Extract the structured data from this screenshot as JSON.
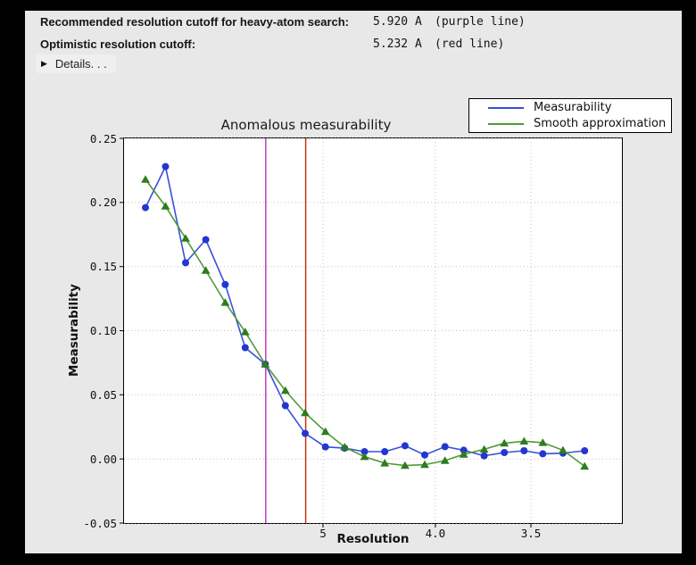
{
  "app": {
    "background": "#000000",
    "panel_background": "#e8e8e8"
  },
  "header": {
    "rows": [
      {
        "label": "Recommended resolution cutoff for heavy-atom search:",
        "value": "5.920 A",
        "note": "(purple line)"
      },
      {
        "label": "Optimistic resolution cutoff:",
        "value": "5.232 A",
        "note": "(red line)"
      }
    ],
    "details": {
      "icon": "▶",
      "label": "Details. . ."
    }
  },
  "chart_data": {
    "type": "line",
    "title": "Anomalous measurability",
    "xlabel": "Resolution",
    "ylabel": "Measurability",
    "grid": true,
    "grid_color": "#c3c3c3",
    "legend_position": "top-right-outside",
    "x_axis": {
      "scale": "linear in 1/d^2 (resolution in Angstrom, decreasing to the right)",
      "tick_labels": [
        "5",
        "4.0",
        "3.5"
      ],
      "tick_values": [
        5,
        4.0,
        3.5
      ],
      "u_range": [
        0.000154,
        0.099858
      ]
    },
    "y_axis": {
      "tick_labels": [
        "0.25",
        "0.20",
        "0.15",
        "0.10",
        "0.05",
        "0.00",
        "-0.05"
      ],
      "tick_values": [
        0.25,
        0.2,
        0.15,
        0.1,
        0.05,
        0.0,
        -0.05
      ],
      "range": [
        -0.05,
        0.25
      ]
    },
    "x_resolution": [
      15.0,
      10.87,
      8.95,
      7.78,
      7.0,
      6.4,
      5.93,
      5.55,
      5.24,
      4.97,
      4.75,
      4.55,
      4.37,
      4.21,
      4.07,
      3.94,
      3.83,
      3.72,
      3.62,
      3.53,
      3.45,
      3.37,
      3.29
    ],
    "series": [
      {
        "name": "Measurability",
        "marker": "circle",
        "line_color": "#3a50d9",
        "marker_color": "#2336cf",
        "values": [
          0.196,
          0.228,
          0.153,
          0.171,
          0.136,
          0.0868,
          0.0739,
          0.0415,
          0.0199,
          0.0094,
          0.0084,
          0.0057,
          0.0057,
          0.0103,
          0.0031,
          0.0096,
          0.0068,
          0.0024,
          0.005,
          0.0064,
          0.004,
          0.0045,
          0.0064
        ]
      },
      {
        "name": "Smooth approximation",
        "marker": "triangle",
        "line_color": "#4f9a38",
        "marker_color": "#2e7c1e",
        "values": [
          0.218,
          0.197,
          0.172,
          0.147,
          0.122,
          0.099,
          0.0739,
          0.0533,
          0.0359,
          0.0213,
          0.0092,
          0.0017,
          -0.0033,
          -0.0052,
          -0.0045,
          -0.0013,
          0.0036,
          0.0075,
          0.0122,
          0.0138,
          0.0127,
          0.0068,
          -0.0057
        ]
      }
    ],
    "vlines": [
      {
        "name": "purple line",
        "resolution": 5.92,
        "color": "#c23ac2"
      },
      {
        "name": "red line",
        "resolution": 5.232,
        "color": "#c53511"
      }
    ]
  }
}
